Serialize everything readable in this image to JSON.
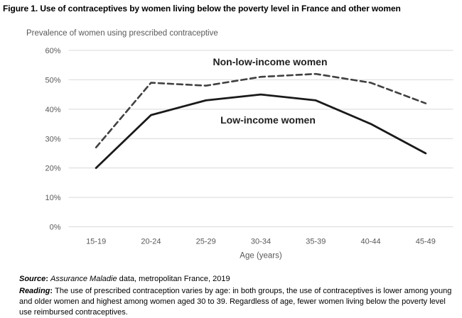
{
  "chart_data": {
    "type": "line",
    "title": "Figure 1. Use of contraceptives by women living below the poverty level in France and other women",
    "subtitle": "Prevalence of women using prescribed contraceptive",
    "categories": [
      "15-19",
      "20-24",
      "25-29",
      "30-34",
      "35-39",
      "40-44",
      "45-49"
    ],
    "series": [
      {
        "name": "Non-low-income women",
        "values": [
          27,
          49,
          48,
          51,
          52,
          49,
          42
        ],
        "line_style": "dashed",
        "color": "#404040",
        "label_anchor_svg": {
          "x": 380,
          "y": 37
        }
      },
      {
        "name": "Low-income women",
        "values": [
          20,
          38,
          43,
          45,
          43,
          35,
          25
        ],
        "line_style": "solid",
        "color": "#1a1a1a",
        "label_anchor_svg": {
          "x": 377,
          "y": 119
        }
      }
    ],
    "xlabel": "Age (years)",
    "ylabel": "",
    "ylim": [
      0,
      60
    ],
    "ytick_step": 10,
    "ytick_labels": [
      "0%",
      "10%",
      "20%",
      "30%",
      "40%",
      "50%",
      "60%"
    ],
    "grid": true,
    "legend_position": "none (series labeled inline above/below their lines)"
  },
  "notes": {
    "source_label": "Source",
    "separator": ": ",
    "source_italic": "Assurance Maladie",
    "source_rest": " data, metropolitan France, 2019",
    "reading_label": "Reading",
    "reading_text": "The use of prescribed contraception varies by age: in both groups, the use of contraceptives is lower among young and older women and highest among women aged 30 to 39. Regardless of age, fewer women living below the poverty level use reimbursed contraceptives."
  },
  "colors": {
    "background": "#ffffff",
    "gridline": "#d9d9d9",
    "tick_text": "#595959",
    "series_non_low_income": "#404040",
    "series_low_income": "#1a1a1a",
    "title_text": "#000000"
  }
}
